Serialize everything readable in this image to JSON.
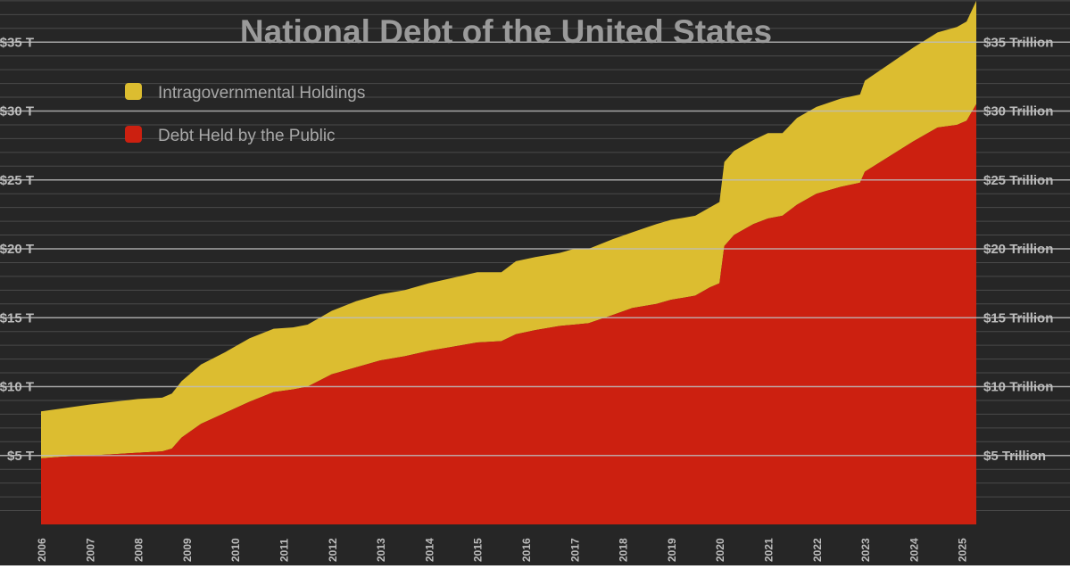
{
  "chart_data": {
    "type": "area",
    "stacked": true,
    "title": "National Debt of the United States",
    "xlabel": "",
    "ylabel": "",
    "xlim": [
      2006,
      2025.3
    ],
    "ylim": [
      0,
      38
    ],
    "grid": true,
    "legend_position": "top-left",
    "x_ticks": [
      "2006",
      "2007",
      "2008",
      "2009",
      "2010",
      "2011",
      "2012",
      "2013",
      "2014",
      "2015",
      "2016",
      "2017",
      "2018",
      "2019",
      "2020",
      "2021",
      "2022",
      "2023",
      "2024",
      "2025"
    ],
    "y_ticks_left": [
      "$5 T",
      "$10 T",
      "$15 T",
      "$20 T",
      "$25 T",
      "$30 T",
      "$35 T"
    ],
    "y_ticks_right": [
      "$5 Trillion",
      "$10 Trillion",
      "$15 Trillion",
      "$20 Trillion",
      "$25 Trillion",
      "$30 Trillion",
      "$35 Trillion"
    ],
    "y_tick_values": [
      5,
      10,
      15,
      20,
      25,
      30,
      35
    ],
    "colors": {
      "background": "#262626",
      "intragovernmental": "#dcbd30",
      "public": "#cc2010",
      "grid_major": "#bdbdbd",
      "grid_minor": "#4a4a4a",
      "title": "#9a9a9a",
      "axis_text": "#bcbcbc",
      "legend_text": "#a8a8a8"
    },
    "x": [
      2006.0,
      2006.4,
      2007.0,
      2007.5,
      2008.0,
      2008.5,
      2008.7,
      2008.9,
      2009.3,
      2009.8,
      2010.3,
      2010.8,
      2011.2,
      2011.5,
      2012.0,
      2012.5,
      2013.0,
      2013.5,
      2014.0,
      2014.5,
      2015.0,
      2015.5,
      2015.8,
      2016.2,
      2016.7,
      2017.0,
      2017.3,
      2017.8,
      2018.2,
      2018.7,
      2019.0,
      2019.5,
      2019.8,
      2020.0,
      2020.1,
      2020.3,
      2020.7,
      2021.0,
      2021.3,
      2021.6,
      2022.0,
      2022.5,
      2022.9,
      2023.0,
      2023.5,
      2024.0,
      2024.5,
      2024.9,
      2025.1,
      2025.3
    ],
    "series": [
      {
        "name": "Debt Held by the Public",
        "values": [
          4.8,
          4.9,
          5.0,
          5.1,
          5.2,
          5.3,
          5.5,
          6.3,
          7.3,
          8.1,
          8.9,
          9.6,
          9.8,
          10.0,
          10.9,
          11.4,
          11.9,
          12.2,
          12.6,
          12.9,
          13.2,
          13.3,
          13.8,
          14.1,
          14.4,
          14.5,
          14.6,
          15.2,
          15.7,
          16.0,
          16.3,
          16.6,
          17.2,
          17.5,
          20.2,
          21.0,
          21.8,
          22.2,
          22.4,
          23.2,
          24.0,
          24.5,
          24.8,
          25.6,
          26.7,
          27.8,
          28.8,
          29.0,
          29.3,
          30.5
        ]
      },
      {
        "name": "Intragovernmental Holdings",
        "values": [
          3.4,
          3.5,
          3.7,
          3.8,
          3.9,
          3.9,
          4.0,
          4.1,
          4.3,
          4.4,
          4.6,
          4.6,
          4.5,
          4.5,
          4.6,
          4.8,
          4.8,
          4.8,
          4.9,
          5.0,
          5.1,
          5.0,
          5.3,
          5.3,
          5.3,
          5.5,
          5.4,
          5.5,
          5.5,
          5.8,
          5.8,
          5.8,
          5.8,
          5.9,
          6.1,
          6.1,
          6.1,
          6.2,
          6.0,
          6.3,
          6.3,
          6.4,
          6.4,
          6.6,
          6.7,
          6.8,
          6.9,
          7.1,
          7.2,
          7.5
        ]
      }
    ]
  }
}
